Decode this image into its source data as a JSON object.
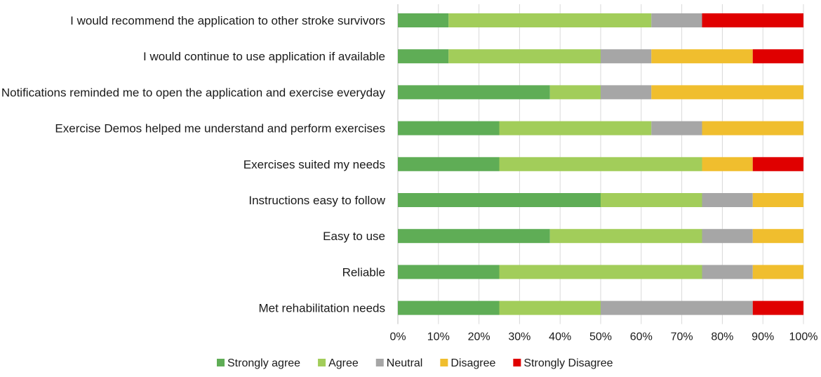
{
  "chart_data": {
    "type": "bar",
    "orientation": "horizontal",
    "stacked": "percent",
    "title": "",
    "xlabel": "",
    "ylabel": "",
    "xlim": [
      0,
      100
    ],
    "grid": true,
    "legend_position": "bottom",
    "categories": [
      "I would recommend the application to other stroke survivors",
      "I would continue to use application if available",
      "Notifications reminded me to open the application and exercise everyday",
      "Exercise Demos helped me understand and perform exercises",
      "Exercises suited my needs",
      "Instructions easy to follow",
      "Easy to use",
      "Reliable",
      "Met rehabilitation needs"
    ],
    "series": [
      {
        "name": "Strongly agree",
        "color": "#5FAD56",
        "values": [
          12.5,
          12.5,
          37.5,
          25,
          25,
          50,
          37.5,
          25,
          25
        ]
      },
      {
        "name": "Agree",
        "color": "#A2CD5A",
        "values": [
          50,
          37.5,
          12.5,
          37.5,
          50,
          25,
          37.5,
          50,
          25
        ]
      },
      {
        "name": "Neutral",
        "color": "#A6A6A6",
        "values": [
          12.5,
          12.5,
          12.5,
          12.5,
          0,
          12.5,
          12.5,
          12.5,
          37.5
        ]
      },
      {
        "name": "Disagree",
        "color": "#F0BE2E",
        "values": [
          0,
          25,
          37.5,
          25,
          12.5,
          12.5,
          12.5,
          12.5,
          0
        ]
      },
      {
        "name": "Strongly Disagree",
        "color": "#E00000",
        "values": [
          25,
          12.5,
          0,
          0,
          12.5,
          0,
          0,
          0,
          12.5
        ]
      }
    ],
    "xticks": [
      "0%",
      "10%",
      "20%",
      "30%",
      "40%",
      "50%",
      "60%",
      "70%",
      "80%",
      "90%",
      "100%"
    ]
  }
}
